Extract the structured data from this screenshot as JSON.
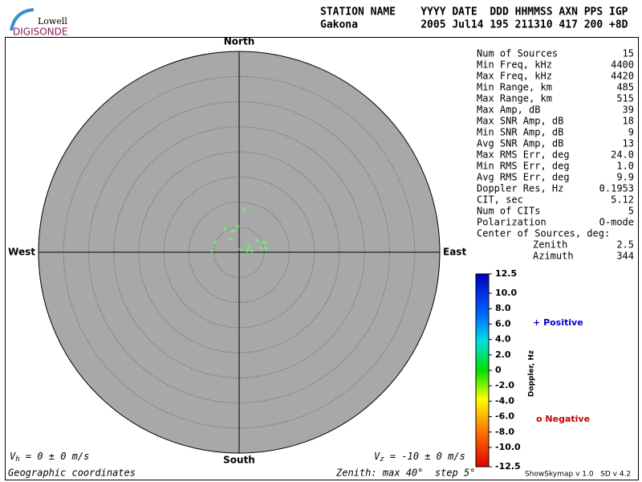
{
  "logo": {
    "top": "Lowell",
    "bottom": "DIGISONDE"
  },
  "header": {
    "line1": "STATION NAME    YYYY DATE  DDD HHMMSS AXN PPS IGP",
    "line2": "Gakona          2005 Jul14 195 211310 417 200 +8D"
  },
  "chart_data": {
    "type": "scatter",
    "directions": {
      "north": "North",
      "south": "South",
      "east": "East",
      "west": "West"
    },
    "xlim": [
      -40,
      40
    ],
    "ylim": [
      -40,
      40
    ],
    "rticks": [
      5,
      10,
      15,
      20,
      25,
      30,
      35,
      40
    ],
    "series": [
      {
        "color": "#66ff66",
        "x": [
          0.96,
          -0.32,
          -2.88,
          -1.28,
          -1.76,
          -4.8,
          -5.44,
          0.16,
          1.92,
          2.56,
          3.68,
          4.96,
          5.28,
          1.6,
          4.48
        ],
        "y": [
          8.48,
          5.12,
          4.64,
          4.16,
          2.56,
          1.92,
          0.16,
          0.64,
          1.12,
          0.16,
          2.4,
          1.92,
          0.8,
          0.32,
          0.8
        ]
      }
    ],
    "colorbar": {
      "label": "Doppler, Hz",
      "ylim": [
        -12.5,
        12.5
      ],
      "yticks": [
        12.5,
        {
          "value": 10,
          "label": "10.0"
        },
        {
          "value": 8,
          "label": "8.0"
        },
        {
          "value": 6,
          "label": "6.0"
        },
        {
          "value": 4,
          "label": "4.0"
        },
        {
          "value": 2,
          "label": "2.0"
        },
        0,
        {
          "value": -2,
          "label": "-2.0"
        },
        {
          "value": -4,
          "label": "-4.0"
        },
        {
          "value": -6,
          "label": "-6.0"
        },
        {
          "value": -8,
          "label": "-8.0"
        },
        {
          "value": -10,
          "label": "-10.0"
        },
        -12.5
      ]
    },
    "legend": {
      "positive": {
        "symbol": "+",
        "text": "Positive",
        "color": "#0000cc"
      },
      "negative": {
        "symbol": "o",
        "text": "Negative",
        "color": "#cc0000"
      }
    },
    "annotations": {
      "vh": {
        "symbol": "V",
        "sub": "h",
        "text": " = 0 ± 0 m/s"
      },
      "vz": {
        "symbol": "V",
        "sub": "z",
        "text": " = -10 ± 0 m/s"
      },
      "coords": "Geographic coordinates",
      "zenith": "Zenith: max 40°  step 5°",
      "version": "ShowSkymap v 1.0   SD v 4.2"
    }
  },
  "stats": {
    "rows": [
      [
        "Num of Sources",
        "15"
      ],
      [
        "Min Freq, kHz",
        "4400"
      ],
      [
        "Max Freq, kHz",
        "4420"
      ],
      [
        "Min Range, km",
        "485"
      ],
      [
        "Max Range, km",
        "515"
      ],
      [
        "Max Amp, dB",
        "39"
      ],
      [
        "Max SNR Amp, dB",
        "18"
      ],
      [
        "Min SNR Amp, dB",
        "9"
      ],
      [
        "Avg SNR Amp, dB",
        "13"
      ],
      [
        "Max RMS Err, deg",
        "24.0"
      ],
      [
        "Min RMS Err, deg",
        "1.0"
      ],
      [
        "Avg RMS Err, deg",
        "9.9"
      ],
      [
        "Doppler Res, Hz",
        "0.1953"
      ],
      [
        "CIT, sec",
        "5.12"
      ],
      [
        "Num of CITs",
        "5"
      ],
      [
        "Polarization",
        "O-mode"
      ]
    ],
    "center_label": "Center of Sources, deg:",
    "center_rows": [
      [
        "Zenith",
        "2.5"
      ],
      [
        "Azimuth",
        "344"
      ]
    ]
  }
}
